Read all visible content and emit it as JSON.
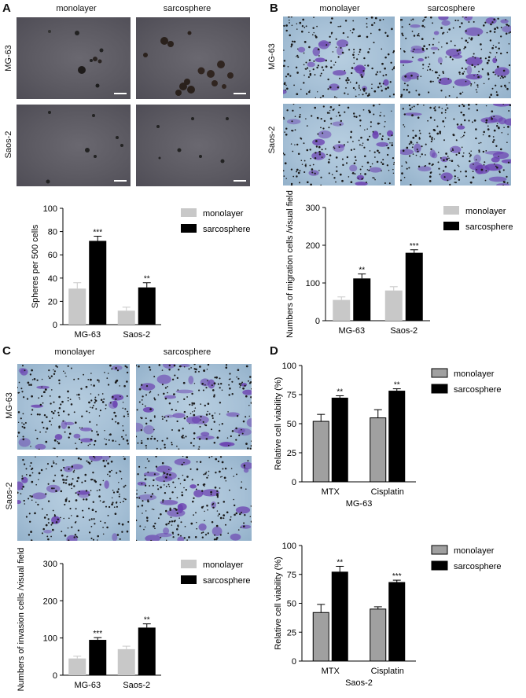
{
  "panels": {
    "A": {
      "letter": "A",
      "col_labels": [
        "monolayer",
        "sarcosphere"
      ],
      "row_labels": [
        "MG-63",
        "Saos-2"
      ]
    },
    "B": {
      "letter": "B",
      "col_labels": [
        "monolayer",
        "sarcosphere"
      ],
      "row_labels": [
        "MG-63",
        "Saos-2"
      ]
    },
    "C": {
      "letter": "C",
      "col_labels": [
        "monolayer",
        "sarcosphere"
      ],
      "row_labels": [
        "MG-63",
        "Saos-2"
      ]
    },
    "D": {
      "letter": "D"
    }
  },
  "colors": {
    "monolayer_light": "#c8c8c8",
    "monolayer_gray": "#a0a0a0",
    "sarcosphere": "#000000",
    "stain": "#6a3fb0"
  },
  "chart_data": [
    {
      "id": "A",
      "type": "bar",
      "categories": [
        "MG-63",
        "Saos-2"
      ],
      "series": [
        {
          "name": "monolayer",
          "values": [
            31,
            12
          ],
          "errors": [
            5,
            3
          ]
        },
        {
          "name": "sarcosphere",
          "values": [
            72,
            32
          ],
          "errors": [
            4,
            4
          ]
        }
      ],
      "significance": [
        [
          "",
          "***"
        ],
        [
          "",
          "**"
        ]
      ],
      "ylabel": "Spheres per 500 cells",
      "xlabel": "",
      "ylim": [
        0,
        100
      ],
      "yticks": [
        "0",
        "20",
        "40",
        "60",
        "80",
        "100"
      ],
      "legend": "top-right"
    },
    {
      "id": "B",
      "type": "bar",
      "categories": [
        "MG-63",
        "Saos-2"
      ],
      "series": [
        {
          "name": "monolayer",
          "values": [
            55,
            80
          ],
          "errors": [
            8,
            10
          ]
        },
        {
          "name": "sarcosphere",
          "values": [
            112,
            180
          ],
          "errors": [
            12,
            8
          ]
        }
      ],
      "significance": [
        [
          "",
          "**"
        ],
        [
          "",
          "***"
        ]
      ],
      "ylabel": "Numbers of migration cells /visual field",
      "xlabel": "",
      "ylim": [
        0,
        300
      ],
      "yticks": [
        "0",
        "100",
        "200",
        "300"
      ],
      "legend": "top-right"
    },
    {
      "id": "C",
      "type": "bar",
      "categories": [
        "MG-63",
        "Saos-2"
      ],
      "series": [
        {
          "name": "monolayer",
          "values": [
            45,
            70
          ],
          "errors": [
            6,
            8
          ]
        },
        {
          "name": "sarcosphere",
          "values": [
            95,
            128
          ],
          "errors": [
            6,
            10
          ]
        }
      ],
      "significance": [
        [
          "",
          "***"
        ],
        [
          "",
          "**"
        ]
      ],
      "ylabel": "Numbers of invasion cells /visual field",
      "xlabel": "",
      "ylim": [
        0,
        300
      ],
      "yticks": [
        "0",
        "100",
        "200",
        "300"
      ],
      "legend": "top-right"
    },
    {
      "id": "D1",
      "type": "bar",
      "categories": [
        "MTX",
        "Cisplatin"
      ],
      "series": [
        {
          "name": "monolayer",
          "values": [
            52,
            55
          ],
          "errors": [
            6,
            7
          ]
        },
        {
          "name": "sarcosphere",
          "values": [
            72,
            78
          ],
          "errors": [
            2,
            2
          ]
        }
      ],
      "significance": [
        [
          "",
          "**"
        ],
        [
          "",
          "**"
        ]
      ],
      "ylabel": "Relative cell viability (%)",
      "xlabel": "MG-63",
      "ylim": [
        0,
        100
      ],
      "yticks": [
        "0",
        "25",
        "50",
        "75",
        "100"
      ],
      "legend": "top-right"
    },
    {
      "id": "D2",
      "type": "bar",
      "categories": [
        "MTX",
        "Cisplatin"
      ],
      "series": [
        {
          "name": "monolayer",
          "values": [
            42,
            45
          ],
          "errors": [
            7,
            2
          ]
        },
        {
          "name": "sarcosphere",
          "values": [
            77,
            68
          ],
          "errors": [
            5,
            2
          ]
        }
      ],
      "significance": [
        [
          "",
          "**"
        ],
        [
          "",
          "***"
        ]
      ],
      "ylabel": "Relative cell viability (%)",
      "xlabel": "Saos-2",
      "ylim": [
        0,
        100
      ],
      "yticks": [
        "0",
        "25",
        "50",
        "75",
        "100"
      ],
      "legend": "top-right"
    }
  ]
}
